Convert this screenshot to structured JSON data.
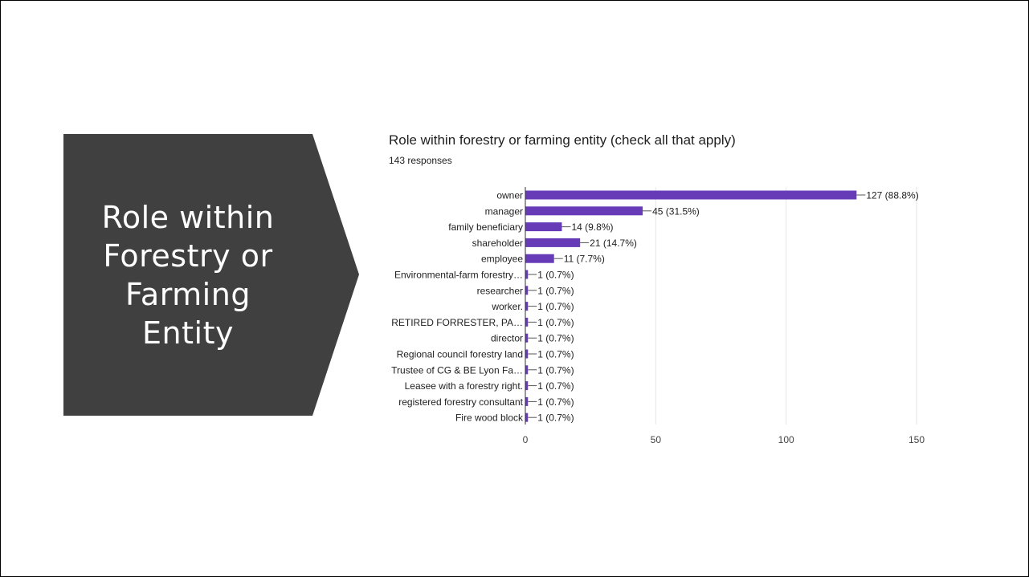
{
  "slide": {
    "title": "Role within\nForestry or\nFarming\nEntity"
  },
  "colors": {
    "title_fill": "#404040",
    "bar": "#673ab7",
    "text": "#212121",
    "grid": "#e6e6e6"
  },
  "chart_data": {
    "type": "bar",
    "orientation": "horizontal",
    "title": "Role within forestry or farming entity (check all that apply)",
    "subtitle": "143 responses",
    "categories": [
      "owner",
      "manager",
      "family beneficiary",
      "shareholder",
      "employee",
      "Environmental-farm forestry…",
      "researcher",
      "worker.",
      "RETIRED FORRESTER, PA…",
      "director",
      "Regional council forestry land",
      "Trustee of CG & BE Lyon Fa…",
      "Leasee with a forestry right.",
      "registered forestry consultant",
      "Fire wood block"
    ],
    "values": [
      127,
      45,
      14,
      21,
      11,
      1,
      1,
      1,
      1,
      1,
      1,
      1,
      1,
      1,
      1
    ],
    "data_labels": [
      "127 (88.8%)",
      "45 (31.5%)",
      "14 (9.8%)",
      "21 (14.7%)",
      "11 (7.7%)",
      "1 (0.7%)",
      "1 (0.7%)",
      "1 (0.7%)",
      "1 (0.7%)",
      "1 (0.7%)",
      "1 (0.7%)",
      "1 (0.7%)",
      "1 (0.7%)",
      "1 (0.7%)",
      "1 (0.7%)"
    ],
    "x_ticks": [
      0,
      50,
      100,
      150
    ],
    "xlim": [
      0,
      150
    ],
    "grid": true,
    "legend": "none"
  }
}
